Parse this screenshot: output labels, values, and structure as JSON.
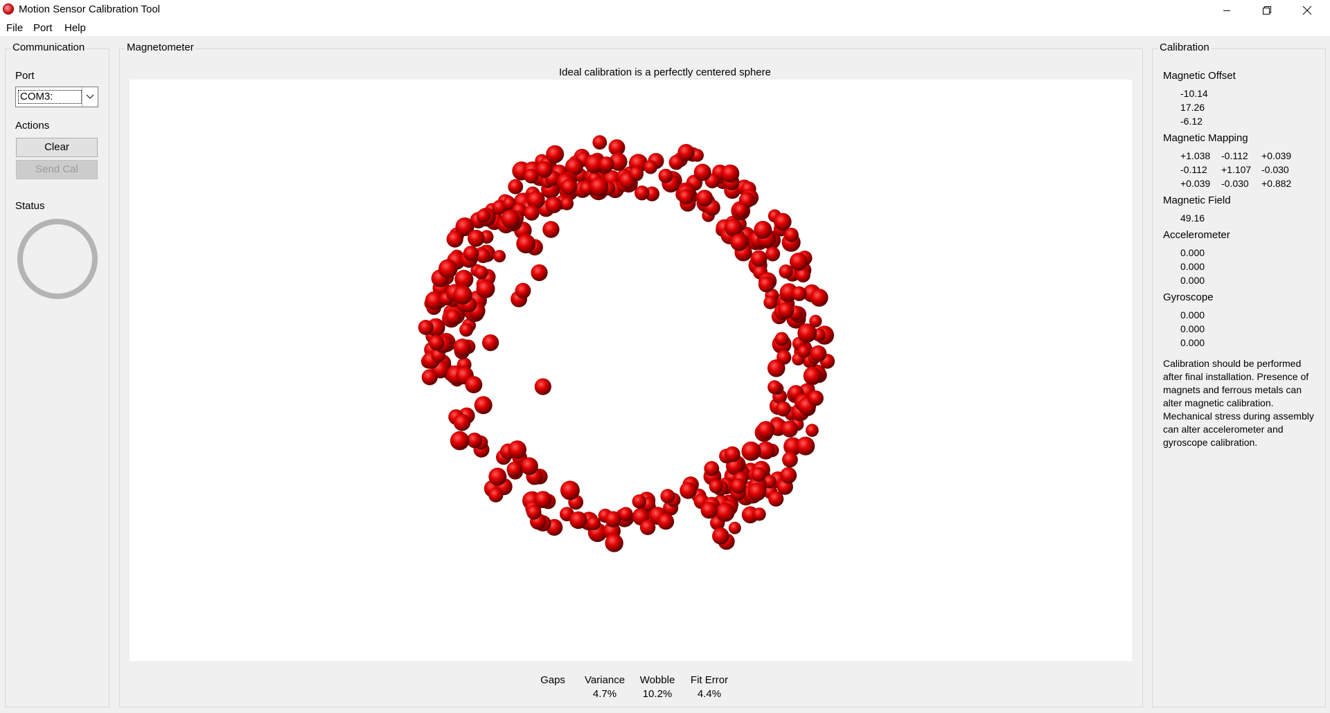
{
  "window": {
    "title": "Motion Sensor Calibration Tool",
    "app_icon": "red-sphere-icon"
  },
  "menu": [
    "File",
    "Port",
    "Help"
  ],
  "communication": {
    "title": "Communication",
    "port_label": "Port",
    "port_value": "COM3:",
    "actions_label": "Actions",
    "clear_button": "Clear",
    "send_cal_button": "Send Cal",
    "status_label": "Status"
  },
  "magnetometer": {
    "title": "Magnetometer",
    "caption": "Ideal calibration is a perfectly centered sphere",
    "point_color": "#e00000",
    "metrics": {
      "gaps_label": "Gaps",
      "gaps_value": "",
      "variance_label": "Variance",
      "variance_value": "4.7%",
      "wobble_label": "Wobble",
      "wobble_value": "10.2%",
      "fit_error_label": "Fit Error",
      "fit_error_value": "4.4%"
    }
  },
  "calibration": {
    "title": "Calibration",
    "offset_label": "Magnetic Offset",
    "offset": [
      "-10.14",
      "17.26",
      "-6.12"
    ],
    "mapping_label": "Magnetic Mapping",
    "mapping": [
      [
        "+1.038",
        "-0.112",
        "+0.039"
      ],
      [
        "-0.112",
        "+1.107",
        "-0.030"
      ],
      [
        "+0.039",
        "-0.030",
        "+0.882"
      ]
    ],
    "field_label": "Magnetic Field",
    "field": "49.16",
    "accel_label": "Accelerometer",
    "accel": [
      "0.000",
      "0.000",
      "0.000"
    ],
    "gyro_label": "Gyroscope",
    "gyro": [
      "0.000",
      "0.000",
      "0.000"
    ],
    "note": "Calibration should be performed after final installation.  Presence of magnets and ferrous metals can alter magnetic calibration. Mechanical stress during assembly can alter accelerometer and gyroscope calibration."
  }
}
